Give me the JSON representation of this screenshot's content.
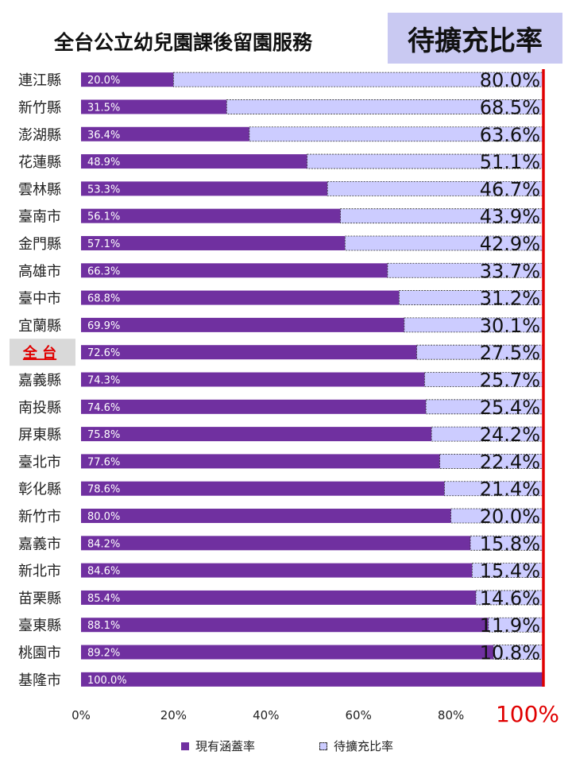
{
  "title": {
    "main": "全台公立幼兒園課後留園服務",
    "highlight": "待擴充比率"
  },
  "colors": {
    "coverage": "#7030a0",
    "expansion": "#ccccff",
    "reference_line": "#e00000",
    "highlight_label": "#e00000",
    "highlight_label_bg": "#d9d9d9"
  },
  "chart_data": {
    "type": "bar",
    "orientation": "horizontal",
    "stacked": true,
    "categories": [
      "連江縣",
      "新竹縣",
      "澎湖縣",
      "花蓮縣",
      "雲林縣",
      "臺南市",
      "金門縣",
      "高雄市",
      "臺中市",
      "宜蘭縣",
      "全 台",
      "嘉義縣",
      "南投縣",
      "屏東縣",
      "臺北市",
      "彰化縣",
      "新竹市",
      "嘉義市",
      "新北市",
      "苗栗縣",
      "臺東縣",
      "桃園市",
      "基隆市"
    ],
    "highlight_category": "全 台",
    "series": [
      {
        "name": "現有涵蓋率",
        "values": [
          20.0,
          31.5,
          36.4,
          48.9,
          53.3,
          56.1,
          57.1,
          66.3,
          68.8,
          69.9,
          72.6,
          74.3,
          74.6,
          75.8,
          77.6,
          78.6,
          80.0,
          84.2,
          84.6,
          85.4,
          88.1,
          89.2,
          100.0
        ],
        "labels": [
          "20.0%",
          "31.5%",
          "36.4%",
          "48.9%",
          "53.3%",
          "56.1%",
          "57.1%",
          "66.3%",
          "68.8%",
          "69.9%",
          "72.6%",
          "74.3%",
          "74.6%",
          "75.8%",
          "77.6%",
          "78.6%",
          "80.0%",
          "84.2%",
          "84.6%",
          "85.4%",
          "88.1%",
          "89.2%",
          "100.0%"
        ]
      },
      {
        "name": "待擴充比率",
        "values": [
          80.0,
          68.5,
          63.6,
          51.1,
          46.7,
          43.9,
          42.9,
          33.7,
          31.2,
          30.1,
          27.5,
          25.7,
          25.4,
          24.2,
          22.4,
          21.4,
          20.0,
          15.8,
          15.4,
          14.6,
          11.9,
          10.8,
          0
        ],
        "labels": [
          "80.0%",
          "68.5%",
          "63.6%",
          "51.1%",
          "46.7%",
          "43.9%",
          "42.9%",
          "33.7%",
          "31.2%",
          "30.1%",
          "27.5%",
          "25.7%",
          "25.4%",
          "24.2%",
          "22.4%",
          "21.4%",
          "20.0%",
          "15.8%",
          "15.4%",
          "14.6%",
          "11.9%",
          "10.8%",
          ""
        ]
      }
    ],
    "xlim": [
      0,
      100
    ],
    "xticks": [
      "0%",
      "20%",
      "40%",
      "60%",
      "80%",
      "100%"
    ],
    "xtick_values": [
      0,
      20,
      40,
      60,
      80,
      100
    ],
    "highlight_tick": "100%",
    "reference_line_value": 100,
    "legend": [
      "現有涵蓋率",
      "待擴充比率"
    ],
    "legend_position": "bottom",
    "grid": false
  }
}
